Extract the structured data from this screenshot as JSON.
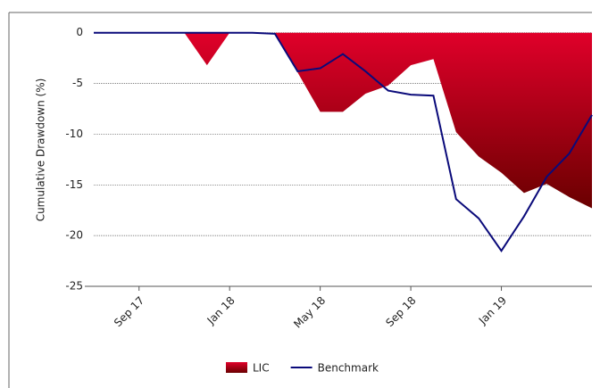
{
  "chart_data": {
    "type": "area-line",
    "y_label": "Cumulative Drawdown (%)",
    "categories": [
      null,
      null,
      "Sep 17",
      null,
      null,
      null,
      "Jan 18",
      null,
      null,
      null,
      "May 18",
      null,
      null,
      null,
      "Sep 18",
      null,
      null,
      null,
      "Jan 19",
      null,
      null,
      null,
      null
    ],
    "series": [
      {
        "name": "LIC",
        "kind": "area",
        "color": "#e0002a",
        "values": [
          0,
          0,
          0,
          0,
          0,
          -3.2,
          0,
          0,
          0,
          -3.9,
          -7.8,
          -7.8,
          -6.0,
          -5.2,
          -3.2,
          -2.6,
          -9.8,
          -12.2,
          -13.8,
          -15.8,
          -14.9,
          -16.2,
          -17.3
        ]
      },
      {
        "name": "Benchmark",
        "kind": "line",
        "color": "#0a0a7a",
        "values": [
          0,
          0,
          0,
          0,
          0,
          0,
          0,
          0,
          -0.1,
          -3.8,
          -3.5,
          -2.1,
          -3.8,
          -5.7,
          -6.1,
          -6.2,
          -16.4,
          -18.3,
          -21.5,
          -18.1,
          -14.2,
          -11.9,
          -8.1
        ]
      }
    ],
    "ylim": [
      -25,
      2
    ],
    "yticks": [
      0,
      -5,
      -10,
      -15,
      -20,
      -25
    ],
    "grid": true
  }
}
